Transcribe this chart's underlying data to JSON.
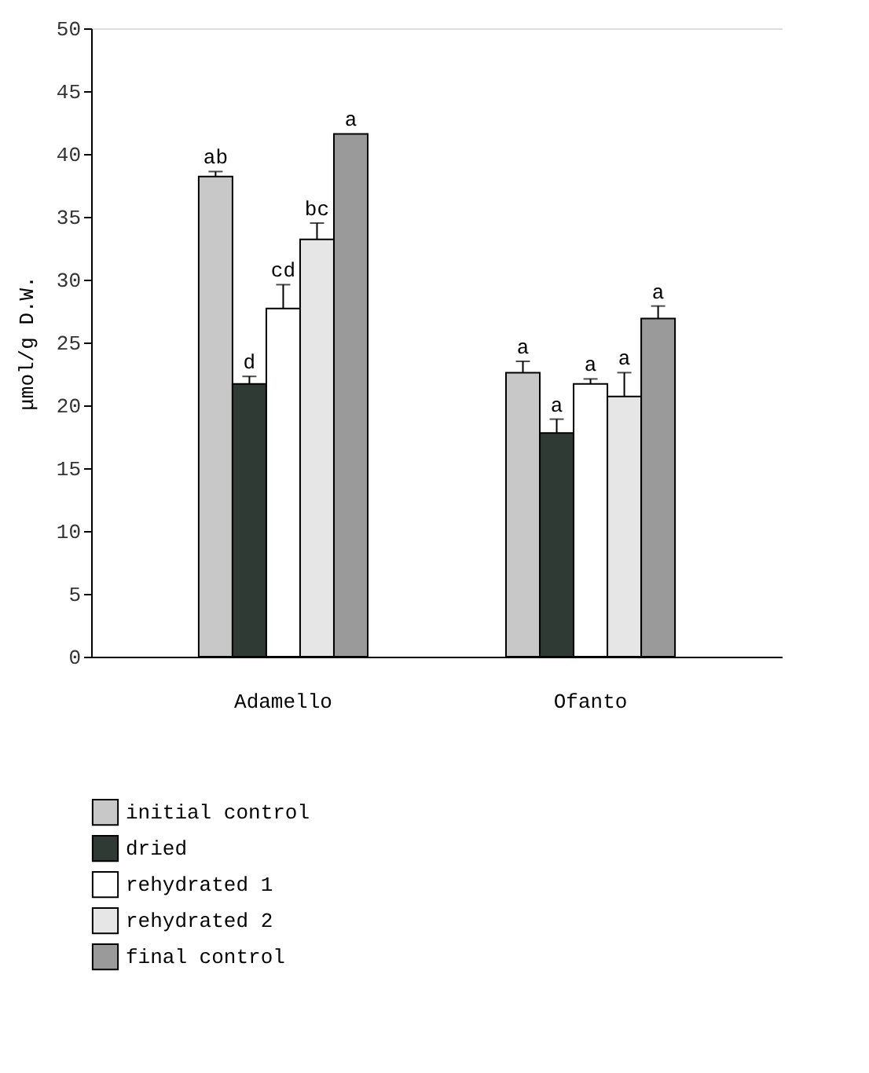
{
  "chart_data": {
    "type": "bar",
    "ylabel": "μmol/g D.W.",
    "categories": [
      "Adamello",
      "Ofanto"
    ],
    "series": [
      {
        "name": "initial control",
        "color": "#c8c8c8",
        "values": [
          38.2,
          22.6
        ],
        "errors": [
          0.4,
          0.9
        ]
      },
      {
        "name": "dried",
        "color": "#2f3a35",
        "values": [
          21.7,
          17.8
        ],
        "errors": [
          0.6,
          1.1
        ]
      },
      {
        "name": "rehydrated 1",
        "color": "#ffffff",
        "values": [
          27.7,
          21.7
        ],
        "errors": [
          1.9,
          0.4
        ]
      },
      {
        "name": "rehydrated 2",
        "color": "#e6e6e6",
        "values": [
          33.2,
          20.7
        ],
        "errors": [
          1.3,
          1.9
        ]
      },
      {
        "name": "final control",
        "color": "#9a9a9a",
        "values": [
          41.6,
          26.9
        ],
        "errors": [
          null,
          1.0
        ]
      }
    ],
    "annotations": [
      "ab",
      "d",
      "cd",
      "bc",
      "a",
      "a",
      "a",
      "a",
      "a",
      "a"
    ],
    "ylim": [
      0,
      50
    ],
    "yticks": [
      0,
      5,
      10,
      15,
      20,
      25,
      30,
      35,
      40,
      45,
      50
    ],
    "grid": false,
    "legend": "bottom"
  }
}
